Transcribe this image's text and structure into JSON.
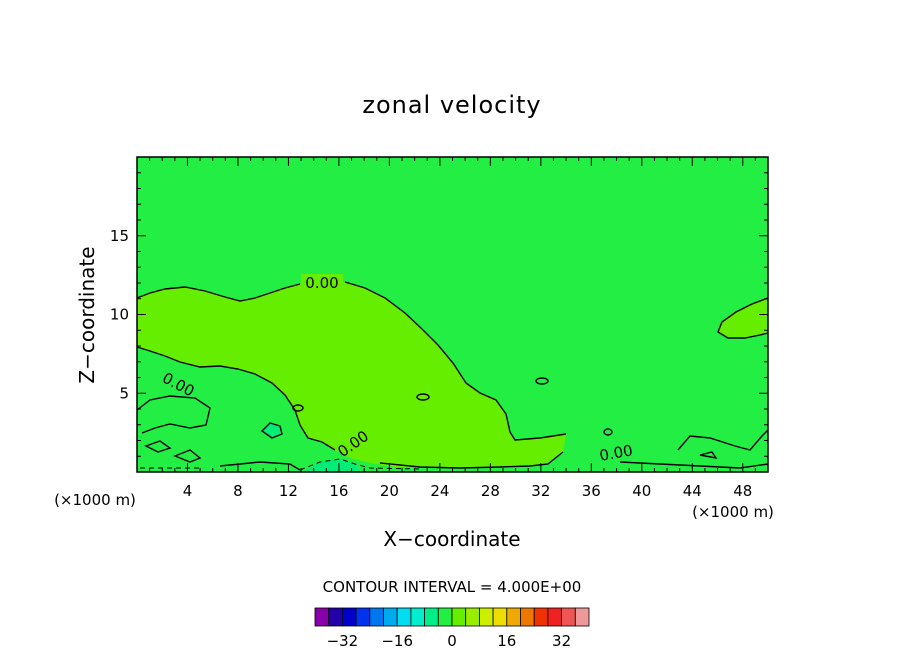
{
  "chart_data": {
    "type": "contour",
    "title": "zonal velocity",
    "xlabel": "X−coordinate",
    "ylabel": "Z−coordinate",
    "x_unit_left": "(×1000 m)",
    "x_unit_right": "(×1000 m)",
    "xlim": [
      0,
      50
    ],
    "ylim": [
      0,
      20
    ],
    "x_ticks": [
      4,
      8,
      12,
      16,
      20,
      24,
      28,
      32,
      36,
      40,
      44,
      48
    ],
    "x_tick_labels": [
      "4",
      "8",
      "12",
      "16",
      "20",
      "24",
      "28",
      "32",
      "36",
      "40",
      "44",
      "48"
    ],
    "y_ticks": [
      5,
      10,
      15
    ],
    "y_tick_labels": [
      "5",
      "10",
      "15"
    ],
    "contour_interval_text": "CONTOUR INTERVAL = 4.000E+00",
    "contour_labels": [
      "0.00",
      "0.00",
      "0.00",
      "0.00"
    ],
    "background_level_color": "#22ee44",
    "positive_level_color": "#66ee00",
    "negative_level_color": "#00ee77",
    "colorbar": {
      "colors": [
        "#8800aa",
        "#2200aa",
        "#0000cc",
        "#0033ee",
        "#0077ee",
        "#00aaee",
        "#00ddee",
        "#00eecc",
        "#00ee88",
        "#22ee44",
        "#66ee00",
        "#99ee00",
        "#ccee00",
        "#eedd00",
        "#eeaa00",
        "#ee7700",
        "#ee3300",
        "#ee2222",
        "#ee5555",
        "#ee9999"
      ],
      "tick_labels": [
        "−32",
        "−16",
        "0",
        "16",
        "32"
      ],
      "tick_values": [
        -32,
        -16,
        0,
        16,
        32
      ],
      "min": -40,
      "max": 40
    }
  }
}
